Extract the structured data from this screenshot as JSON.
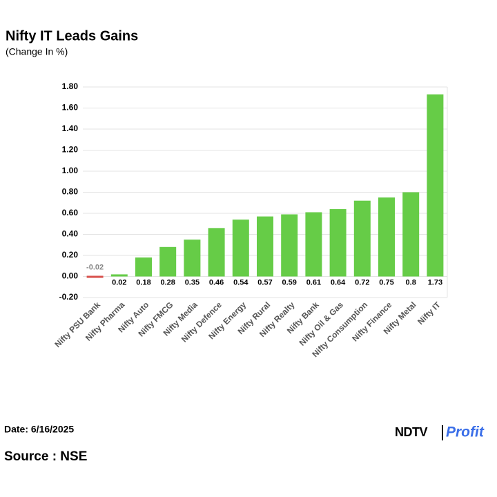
{
  "chart_data": {
    "type": "bar",
    "title": "Nifty IT Leads Gains",
    "subtitle": "(Change In %)",
    "categories": [
      "Nifty PSU Bank",
      "Nifty Pharma",
      "Nifty Auto",
      "Nifty FMCG",
      "Nifty Media",
      "Nifty Defence",
      "Nifty Energy",
      "Nifty Rural",
      "Nifty Realty",
      "Nifty Bank",
      "Nifty Oil & Gas",
      "Nifty Consumption",
      "Nifty Finance",
      "Nifty Metal",
      "Nifty IT"
    ],
    "values": [
      -0.02,
      0.02,
      0.18,
      0.28,
      0.35,
      0.46,
      0.54,
      0.57,
      0.59,
      0.61,
      0.64,
      0.72,
      0.75,
      0.8,
      1.73
    ],
    "color": "#66cc47",
    "negative_color": "#d9534f",
    "ylim": [
      -0.2,
      1.8
    ],
    "yticks": [
      {
        "value": -0.2,
        "label": "-0.20"
      },
      {
        "value": 0,
        "label": "0.00"
      },
      {
        "value": 0.2,
        "label": "0.20"
      },
      {
        "value": 0.4,
        "label": "0.40"
      },
      {
        "value": 0.6,
        "label": "0.60"
      },
      {
        "value": 0.8,
        "label": "0.80"
      },
      {
        "value": 1.0,
        "label": "1.00"
      },
      {
        "value": 1.2,
        "label": "1.20"
      },
      {
        "value": 1.4,
        "label": "1.40"
      },
      {
        "value": 1.6,
        "label": "1.60"
      },
      {
        "value": 1.8,
        "label": "1.80"
      }
    ],
    "grid": true
  },
  "footer": {
    "date": "Date: 6/16/2025",
    "source": "Source : NSE",
    "logo_left": "NDTV",
    "logo_right": "Profit"
  }
}
